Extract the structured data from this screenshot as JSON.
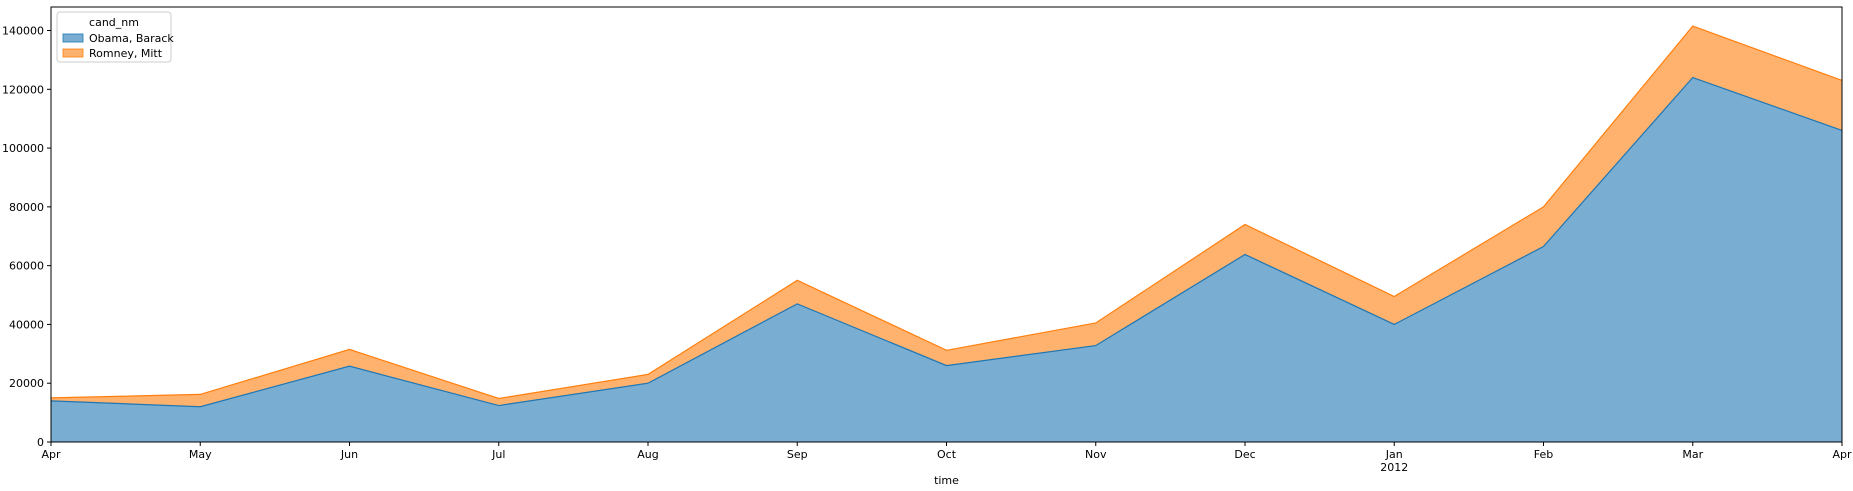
{
  "chart_data": {
    "type": "area",
    "stacked": true,
    "xlabel": "time",
    "ylabel": "",
    "ylim": [
      0,
      148000
    ],
    "yticks": [
      0,
      20000,
      40000,
      60000,
      80000,
      100000,
      120000,
      140000
    ],
    "ytick_labels": [
      "0",
      "20000",
      "40000",
      "60000",
      "80000",
      "100000",
      "120000",
      "140000"
    ],
    "x": [
      "2011-04",
      "2011-05",
      "2011-06",
      "2011-07",
      "2011-08",
      "2011-09",
      "2011-10",
      "2011-11",
      "2011-12",
      "2012-01",
      "2012-02",
      "2012-03",
      "2012-04"
    ],
    "xtick_labels": [
      "Apr",
      "May",
      "Jun",
      "Jul",
      "Aug",
      "Sep",
      "Oct",
      "Nov",
      "Dec",
      "Jan",
      "Feb",
      "Mar",
      "Apr"
    ],
    "xtick_sublabels": [
      "",
      "",
      "",
      "",
      "",
      "",
      "",
      "",
      "",
      "2012",
      "",
      "",
      ""
    ],
    "legend_title": "cand_nm",
    "legend_position": "top-left",
    "grid": false,
    "series": [
      {
        "name": "Obama, Barack",
        "color": "#1f77b4",
        "values": [
          14000,
          12000,
          25800,
          12400,
          20000,
          47000,
          26000,
          32800,
          63800,
          40000,
          66500,
          124000,
          106000
        ]
      },
      {
        "name": "Romney, Mitt",
        "color": "#ff7f0e",
        "values": [
          1000,
          4200,
          5700,
          2400,
          3000,
          8000,
          5200,
          7700,
          10200,
          9500,
          13500,
          17500,
          17000
        ]
      }
    ]
  }
}
